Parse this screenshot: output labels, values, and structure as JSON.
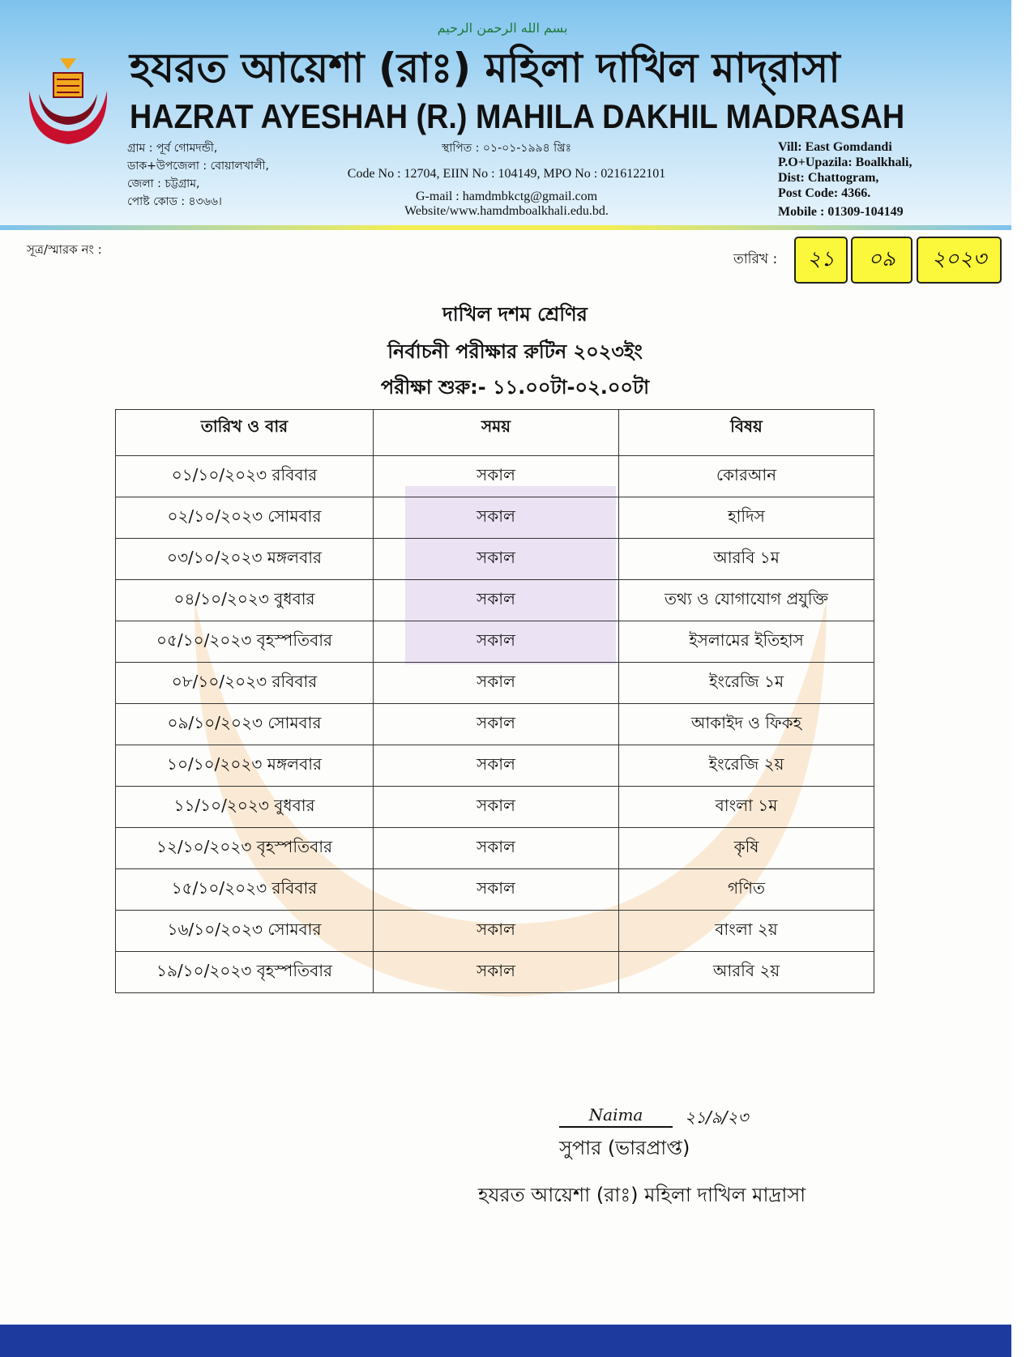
{
  "letterhead": {
    "calligraphy": "بسم الله الرحمن الرحيم",
    "title_bn": "হযরত আয়েশা (রাঃ) মহিলা দাখিল মাদ্‌রাসা",
    "title_en": "HAZRAT AYESHAH (R.) MAHILA DAKHIL MADRASAH",
    "logo_text": "HAZRAT AYESHAH (R.) MAHILA DAKHIL MADRASAH",
    "address_bn": [
      "গ্রাম : পূর্ব গোমদন্ডী,",
      "ডাক+উপজেলা : বোয়ালখালী,",
      "জেলা : চট্টগ্রাম,",
      "পোষ্ট কোড : ৪৩৬৬।"
    ],
    "established": "স্থাপিত : ০১-০১-১৯৯৪ খ্রিঃ",
    "codes": "Code No : 12704, EIIN No  : 104149, MPO No : 0216122101",
    "gmail": "G-mail : hamdmbkctg@gmail.com",
    "website": "Website/www.hamdmboalkhali.edu.bd.",
    "address_en": [
      "Vill: East Gomdandi",
      "P.O+Upazila: Boalkhali,",
      "Dist: Chattogram,",
      "Post Code: 4366."
    ],
    "mobile": "Mobile : 01309-104149",
    "colors": {
      "band": "#7ec3ee",
      "bottom_bar": "#1d3a9e",
      "date_box": "#fbf73a"
    }
  },
  "reference_label": "সূত্র/স্মারক নং :",
  "date": {
    "label": "তারিখ :",
    "day": "২১",
    "month": "০৯",
    "year": "২০২৩"
  },
  "headings": [
    "দাখিল দশম শ্রেণির",
    "নির্বাচনী পরীক্ষার রুটিন ২০২৩ইং",
    "পরীক্ষা শুরু:- ১১.০০টা-০২.০০টা"
  ],
  "table": {
    "columns": [
      "তারিখ ও বার",
      "সময়",
      "বিষয়"
    ],
    "rows": [
      [
        "০১/১০/২০২৩ রবিবার",
        "সকাল",
        "কোরআন"
      ],
      [
        "০২/১০/২০২৩ সোমবার",
        "সকাল",
        "হাদিস"
      ],
      [
        "০৩/১০/২০২৩ মঙ্গলবার",
        "সকাল",
        "আরবি ১ম"
      ],
      [
        "০৪/১০/২০২৩ বুধবার",
        "সকাল",
        "তথ্য ও যোগাযোগ প্রযুক্তি"
      ],
      [
        "০৫/১০/২০২৩ বৃহস্পতিবার",
        "সকাল",
        "ইসলামের ইতিহাস"
      ],
      [
        "০৮/১০/২০২৩ রবিবার",
        "সকাল",
        "ইংরেজি ১ম"
      ],
      [
        "০৯/১০/২০২৩ সোমবার",
        "সকাল",
        "আকাইদ ও ফিকহ"
      ],
      [
        "১০/১০/২০২৩ মঙ্গলবার",
        "সকাল",
        "ইংরেজি ২য়"
      ],
      [
        "১১/১০/২০২৩ বুধবার",
        "সকাল",
        "বাংলা ১ম"
      ],
      [
        "১২/১০/২০২৩ বৃহস্পতিবার",
        "সকাল",
        "কৃষি"
      ],
      [
        "১৫/১০/২০২৩ রবিবার",
        "সকাল",
        "গণিত"
      ],
      [
        "১৬/১০/২০২৩ সোমবার",
        "সকাল",
        "বাংলা ২য়"
      ],
      [
        "১৯/১০/২০২৩ বৃহস্পতিবার",
        "সকাল",
        "আরবি ২য়"
      ]
    ]
  },
  "signature": {
    "name": "Naima",
    "date": "২১/৯/২৩",
    "role": "সুপার (ভারপ্রাপ্ত)",
    "institution": "হযরত আয়েশা (রাঃ) মহিলা দাখিল মাদ্রাসা"
  }
}
